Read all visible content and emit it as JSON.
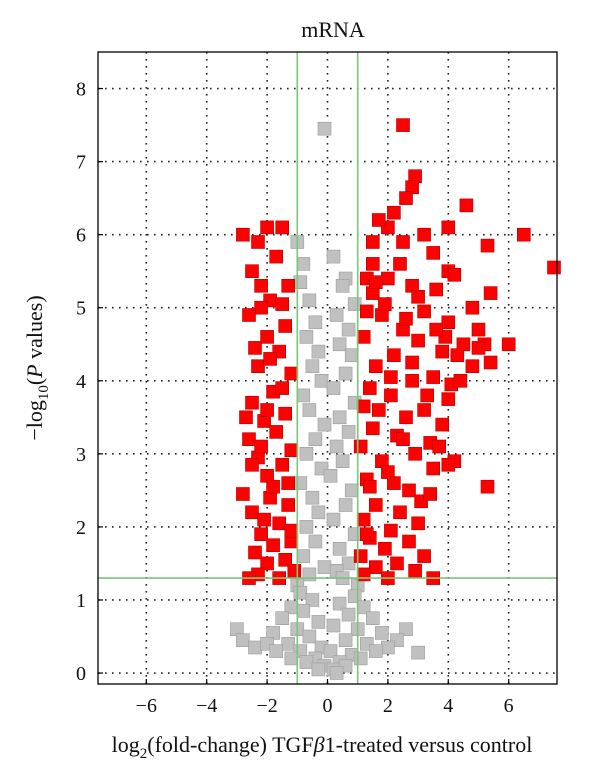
{
  "chart_data": {
    "type": "scatter",
    "title": "mRNA",
    "xlabel_prefix": "log",
    "xlabel_sub": "2",
    "xlabel_rest_before_beta": "(fold-change) TGF",
    "xlabel_beta": "β",
    "xlabel_rest_after_beta": "1-treated versus control",
    "ylabel_prefix": "−log",
    "ylabel_sub": "10",
    "ylabel_open": "(",
    "ylabel_p": "P",
    "ylabel_rest": " values)",
    "xlim": [
      -7.6,
      7.6
    ],
    "ylim": [
      -0.15,
      8.5
    ],
    "xticks": [
      -6,
      -4,
      -2,
      0,
      2,
      4,
      6
    ],
    "yticks": [
      0,
      1,
      2,
      3,
      4,
      5,
      6,
      7,
      8
    ],
    "grid": "dotted",
    "thresholds": {
      "x": [
        -1,
        1
      ],
      "y": 1.3
    },
    "colors": {
      "significant": "#ff0000",
      "not_significant": "#c0c0c0",
      "threshold": "#77c777"
    },
    "series": [
      {
        "color": "#c0c0c0",
        "points": [
          [
            -0.1,
            7.45
          ],
          [
            -1.0,
            5.9
          ],
          [
            0.2,
            5.7
          ],
          [
            -0.8,
            5.6
          ],
          [
            0.6,
            5.4
          ],
          [
            -0.9,
            5.35
          ],
          [
            0.5,
            5.3
          ],
          [
            -0.6,
            5.1
          ],
          [
            0.9,
            5.05
          ],
          [
            0.3,
            4.9
          ],
          [
            -0.4,
            4.8
          ],
          [
            0.7,
            4.7
          ],
          [
            -0.7,
            4.6
          ],
          [
            0.4,
            4.5
          ],
          [
            -0.3,
            4.4
          ],
          [
            0.8,
            4.35
          ],
          [
            -0.5,
            4.2
          ],
          [
            0.6,
            4.1
          ],
          [
            -0.2,
            4.0
          ],
          [
            0.2,
            3.9
          ],
          [
            -0.8,
            3.8
          ],
          [
            0.9,
            3.7
          ],
          [
            -0.6,
            3.6
          ],
          [
            0.4,
            3.5
          ],
          [
            -0.1,
            3.4
          ],
          [
            0.7,
            3.3
          ],
          [
            -0.4,
            3.2
          ],
          [
            0.3,
            3.1
          ],
          [
            -0.7,
            3.0
          ],
          [
            0.5,
            2.9
          ],
          [
            -0.2,
            2.8
          ],
          [
            0.1,
            2.7
          ],
          [
            -0.9,
            2.6
          ],
          [
            0.8,
            2.5
          ],
          [
            -0.5,
            2.4
          ],
          [
            0.6,
            2.3
          ],
          [
            -0.3,
            2.2
          ],
          [
            0.2,
            2.1
          ],
          [
            -0.7,
            2.0
          ],
          [
            0.9,
            1.9
          ],
          [
            -0.4,
            1.8
          ],
          [
            0.4,
            1.7
          ],
          [
            -0.8,
            1.6
          ],
          [
            0.7,
            1.5
          ],
          [
            -0.1,
            1.45
          ],
          [
            0.3,
            1.4
          ],
          [
            -0.6,
            1.35
          ],
          [
            0.5,
            1.3
          ],
          [
            -1.0,
            1.2
          ],
          [
            1.0,
            1.2
          ],
          [
            -0.9,
            1.1
          ],
          [
            0.9,
            1.05
          ],
          [
            -0.5,
            1.0
          ],
          [
            0.4,
            0.95
          ],
          [
            -1.2,
            0.9
          ],
          [
            1.2,
            0.9
          ],
          [
            -0.8,
            0.85
          ],
          [
            0.7,
            0.8
          ],
          [
            -1.5,
            0.75
          ],
          [
            1.5,
            0.75
          ],
          [
            -0.3,
            0.7
          ],
          [
            0.2,
            0.65
          ],
          [
            -1.0,
            0.6
          ],
          [
            1.0,
            0.6
          ],
          [
            -1.8,
            0.55
          ],
          [
            1.8,
            0.55
          ],
          [
            -0.6,
            0.5
          ],
          [
            0.6,
            0.45
          ],
          [
            -1.3,
            0.4
          ],
          [
            1.3,
            0.4
          ],
          [
            -0.2,
            0.35
          ],
          [
            0.1,
            0.3
          ],
          [
            -0.9,
            0.3
          ],
          [
            0.8,
            0.25
          ],
          [
            -0.4,
            0.2
          ],
          [
            0.4,
            0.15
          ],
          [
            -0.1,
            0.1
          ],
          [
            0.2,
            0.05
          ],
          [
            -0.7,
            0.15
          ],
          [
            0.6,
            0.1
          ],
          [
            -1.2,
            0.2
          ],
          [
            1.1,
            0.2
          ],
          [
            -0.3,
            0.05
          ],
          [
            0.3,
            0.0
          ],
          [
            -3.0,
            0.6
          ],
          [
            -2.8,
            0.45
          ],
          [
            -2.4,
            0.35
          ],
          [
            -2.0,
            0.4
          ],
          [
            -1.7,
            0.3
          ],
          [
            2.6,
            0.6
          ],
          [
            2.3,
            0.45
          ],
          [
            2.0,
            0.35
          ],
          [
            3.0,
            0.28
          ],
          [
            1.6,
            0.3
          ]
        ]
      },
      {
        "color": "#ff0000",
        "points": [
          [
            2.5,
            7.5
          ],
          [
            2.9,
            6.8
          ],
          [
            2.8,
            6.65
          ],
          [
            2.6,
            6.5
          ],
          [
            2.2,
            6.3
          ],
          [
            4.6,
            6.4
          ],
          [
            2.0,
            6.1
          ],
          [
            -2.0,
            6.1
          ],
          [
            -2.8,
            6.0
          ],
          [
            -1.5,
            6.1
          ],
          [
            1.7,
            6.2
          ],
          [
            6.5,
            6.0
          ],
          [
            2.5,
            5.9
          ],
          [
            3.2,
            6.0
          ],
          [
            4.0,
            6.1
          ],
          [
            5.3,
            5.85
          ],
          [
            -2.3,
            5.9
          ],
          [
            1.5,
            5.9
          ],
          [
            3.5,
            5.75
          ],
          [
            7.5,
            5.55
          ],
          [
            4.0,
            5.5
          ],
          [
            4.2,
            5.45
          ],
          [
            1.3,
            5.4
          ],
          [
            -2.5,
            5.5
          ],
          [
            2.0,
            5.4
          ],
          [
            2.8,
            5.3
          ],
          [
            3.6,
            5.25
          ],
          [
            5.4,
            5.2
          ],
          [
            1.5,
            5.2
          ],
          [
            -1.9,
            5.1
          ],
          [
            -2.2,
            5.0
          ],
          [
            4.8,
            5.0
          ],
          [
            3.2,
            4.95
          ],
          [
            -2.6,
            4.9
          ],
          [
            1.8,
            4.9
          ],
          [
            4.0,
            4.8
          ],
          [
            5.0,
            4.7
          ],
          [
            2.5,
            4.7
          ],
          [
            -1.4,
            4.75
          ],
          [
            1.2,
            4.6
          ],
          [
            -2.0,
            4.6
          ],
          [
            3.0,
            4.55
          ],
          [
            4.5,
            4.5
          ],
          [
            5.2,
            4.5
          ],
          [
            6.0,
            4.5
          ],
          [
            3.8,
            4.4
          ],
          [
            -1.6,
            4.4
          ],
          [
            2.2,
            4.35
          ],
          [
            4.3,
            4.35
          ],
          [
            5.4,
            4.25
          ],
          [
            4.8,
            4.2
          ],
          [
            1.6,
            4.2
          ],
          [
            -2.3,
            4.2
          ],
          [
            -1.2,
            4.1
          ],
          [
            3.5,
            4.05
          ],
          [
            2.8,
            4.0
          ],
          [
            4.1,
            3.95
          ],
          [
            1.4,
            3.9
          ],
          [
            -1.8,
            3.85
          ],
          [
            2.1,
            3.8
          ],
          [
            4.0,
            3.75
          ],
          [
            -2.5,
            3.7
          ],
          [
            1.2,
            3.65
          ],
          [
            3.2,
            3.6
          ],
          [
            -1.4,
            3.55
          ],
          [
            2.6,
            3.5
          ],
          [
            -2.1,
            3.45
          ],
          [
            3.8,
            3.4
          ],
          [
            1.5,
            3.35
          ],
          [
            -1.7,
            3.3
          ],
          [
            2.3,
            3.25
          ],
          [
            -2.6,
            3.2
          ],
          [
            3.4,
            3.15
          ],
          [
            1.1,
            3.1
          ],
          [
            -1.2,
            3.05
          ],
          [
            2.9,
            3.0
          ],
          [
            4.2,
            2.9
          ],
          [
            -2.3,
            2.95
          ],
          [
            1.8,
            2.9
          ],
          [
            3.5,
            2.8
          ],
          [
            -1.5,
            2.85
          ],
          [
            2.0,
            2.75
          ],
          [
            -2.0,
            2.7
          ],
          [
            4.0,
            2.85
          ],
          [
            5.3,
            2.55
          ],
          [
            1.3,
            2.65
          ],
          [
            -2.8,
            2.45
          ],
          [
            2.7,
            2.5
          ],
          [
            -1.9,
            2.4
          ],
          [
            3.1,
            2.35
          ],
          [
            1.6,
            2.3
          ],
          [
            -1.3,
            2.3
          ],
          [
            2.4,
            2.2
          ],
          [
            -2.5,
            2.2
          ],
          [
            1.2,
            2.1
          ],
          [
            3.0,
            2.05
          ],
          [
            -1.6,
            2.05
          ],
          [
            2.1,
            1.95
          ],
          [
            -2.2,
            1.9
          ],
          [
            1.4,
            1.85
          ],
          [
            -1.2,
            1.8
          ],
          [
            2.7,
            1.8
          ],
          [
            -1.8,
            1.75
          ],
          [
            1.9,
            1.7
          ],
          [
            -2.4,
            1.65
          ],
          [
            1.1,
            1.6
          ],
          [
            3.2,
            1.6
          ],
          [
            -1.4,
            1.55
          ],
          [
            2.3,
            1.5
          ],
          [
            -2.0,
            1.5
          ],
          [
            1.6,
            1.45
          ],
          [
            -1.1,
            1.4
          ],
          [
            2.9,
            1.4
          ],
          [
            -2.3,
            1.35
          ],
          [
            1.2,
            1.35
          ],
          [
            -1.6,
            1.3
          ],
          [
            2.0,
            1.3
          ],
          [
            3.5,
            1.3
          ],
          [
            -2.6,
            1.3
          ],
          [
            1.5,
            5.6
          ],
          [
            -2.2,
            5.3
          ],
          [
            2.4,
            5.6
          ],
          [
            -1.7,
            5.7
          ],
          [
            1.9,
            5.05
          ],
          [
            3.0,
            5.15
          ],
          [
            -1.3,
            5.3
          ],
          [
            2.6,
            4.85
          ],
          [
            -2.4,
            4.45
          ],
          [
            3.9,
            4.6
          ],
          [
            1.3,
            4.95
          ],
          [
            -1.5,
            3.9
          ],
          [
            2.8,
            4.25
          ],
          [
            -2.0,
            3.6
          ],
          [
            3.3,
            3.8
          ],
          [
            -1.8,
            2.55
          ],
          [
            2.5,
            3.2
          ],
          [
            -2.5,
            2.85
          ],
          [
            3.7,
            3.1
          ],
          [
            1.4,
            2.55
          ],
          [
            -1.3,
            2.6
          ],
          [
            2.2,
            2.6
          ],
          [
            -2.1,
            2.1
          ],
          [
            3.4,
            2.45
          ],
          [
            1.7,
            3.6
          ],
          [
            -1.9,
            4.3
          ],
          [
            2.1,
            4.05
          ],
          [
            -1.5,
            5.05
          ],
          [
            1.6,
            5.35
          ],
          [
            4.4,
            4.0
          ],
          [
            3.6,
            4.7
          ],
          [
            5.0,
            4.45
          ],
          [
            -2.7,
            3.5
          ],
          [
            -2.2,
            3.1
          ],
          [
            1.3,
            1.9
          ],
          [
            -1.2,
            1.95
          ]
        ]
      }
    ]
  }
}
